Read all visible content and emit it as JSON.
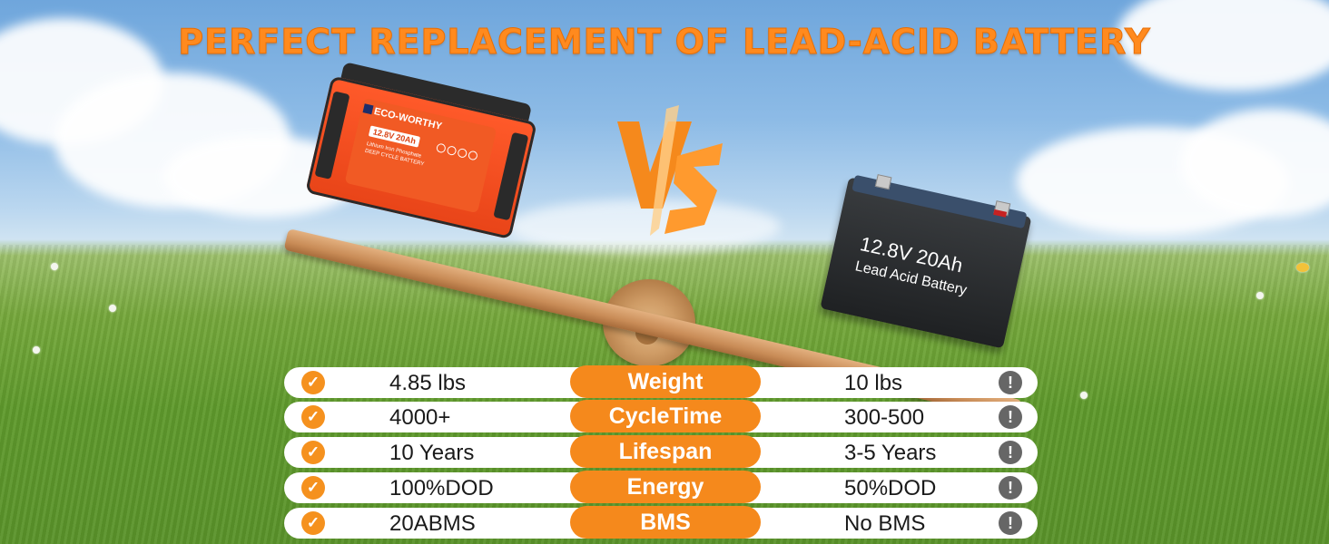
{
  "headline": "PERFECT REPLACEMENT OF LEAD-ACID BATTERY",
  "vs_label": "VS",
  "eco_battery": {
    "brand": "ECO-WORTHY",
    "spec": "12.8V 20Ah",
    "line1": "Lithium Iron Phosphate",
    "line2": "DEEP CYCLE BATTERY"
  },
  "lead_battery": {
    "spec": "12.8V 20Ah",
    "type": "Lead Acid Battery"
  },
  "colors": {
    "accent": "#f5891c",
    "headline": "#ff8a1e",
    "check": "#f5911e",
    "warning": "#666666"
  },
  "icons": {
    "left": "checkmark-icon",
    "right": "exclamation-icon"
  },
  "comparison": [
    {
      "left": "4.85 lbs",
      "label": "Weight",
      "right": "10 lbs"
    },
    {
      "left": "4000+",
      "label": "CycleTime",
      "right": "300-500"
    },
    {
      "left": "10 Years",
      "label": "Lifespan",
      "right": "3-5 Years"
    },
    {
      "left": "100%DOD",
      "label": "Energy",
      "right": "50%DOD"
    },
    {
      "left": "20ABMS",
      "label": "BMS",
      "right": "No BMS"
    }
  ]
}
